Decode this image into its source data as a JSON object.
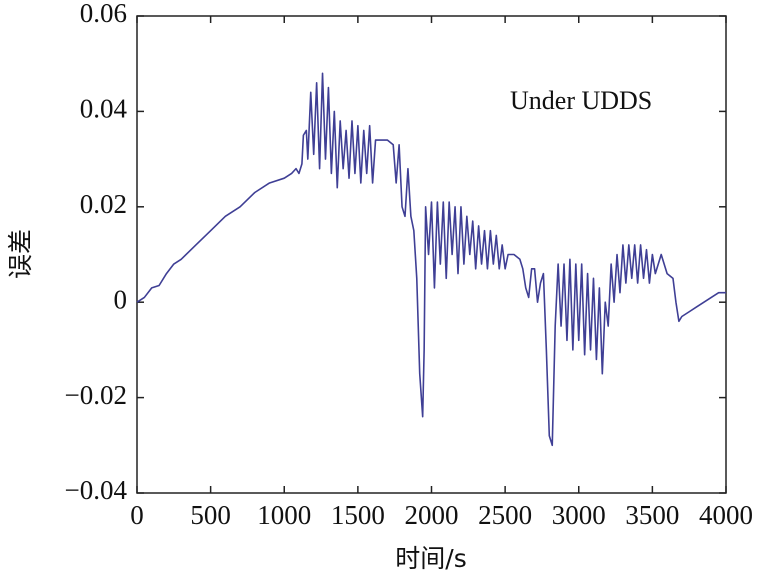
{
  "chart_data": {
    "type": "line",
    "title": null,
    "annotation": "Under UDDS",
    "x_label": "时间/s",
    "y_label": "误差",
    "xlim": [
      0,
      4000
    ],
    "ylim": [
      -0.04,
      0.06
    ],
    "xticks": [
      0,
      500,
      1000,
      1500,
      2000,
      2500,
      3000,
      3500,
      4000
    ],
    "yticks": [
      {
        "value": -0.04,
        "label": "−0.04"
      },
      {
        "value": -0.02,
        "label": "−0.02"
      },
      0,
      0.02,
      0.04,
      0.06
    ],
    "grid": false,
    "x": [
      0,
      50,
      100,
      150,
      200,
      250,
      300,
      400,
      500,
      600,
      700,
      800,
      900,
      1000,
      1050,
      1080,
      1100,
      1120,
      1130,
      1150,
      1160,
      1180,
      1200,
      1220,
      1240,
      1260,
      1280,
      1300,
      1320,
      1340,
      1360,
      1380,
      1400,
      1420,
      1440,
      1460,
      1480,
      1500,
      1520,
      1540,
      1560,
      1580,
      1600,
      1620,
      1660,
      1700,
      1740,
      1760,
      1780,
      1800,
      1820,
      1840,
      1860,
      1880,
      1900,
      1920,
      1940,
      1950,
      1960,
      1980,
      2000,
      2020,
      2040,
      2060,
      2080,
      2100,
      2120,
      2140,
      2160,
      2180,
      2200,
      2220,
      2240,
      2260,
      2280,
      2300,
      2320,
      2340,
      2360,
      2380,
      2400,
      2420,
      2440,
      2460,
      2480,
      2500,
      2520,
      2560,
      2600,
      2620,
      2640,
      2660,
      2680,
      2700,
      2720,
      2740,
      2760,
      2780,
      2800,
      2820,
      2840,
      2860,
      2880,
      2900,
      2920,
      2940,
      2960,
      2980,
      3000,
      3020,
      3040,
      3060,
      3080,
      3100,
      3120,
      3140,
      3160,
      3180,
      3200,
      3220,
      3240,
      3260,
      3280,
      3300,
      3320,
      3340,
      3360,
      3380,
      3400,
      3420,
      3440,
      3460,
      3480,
      3500,
      3520,
      3560,
      3600,
      3640,
      3660,
      3680,
      3700,
      3750,
      3800,
      3850,
      3900,
      3950,
      4000
    ],
    "series": [
      {
        "name": null,
        "color": "#3f3f95",
        "values": [
          0,
          0.001,
          0.003,
          0.0035,
          0.006,
          0.008,
          0.009,
          0.012,
          0.015,
          0.018,
          0.02,
          0.023,
          0.025,
          0.026,
          0.027,
          0.028,
          0.027,
          0.029,
          0.035,
          0.036,
          0.03,
          0.044,
          0.031,
          0.046,
          0.028,
          0.048,
          0.03,
          0.045,
          0.027,
          0.04,
          0.024,
          0.038,
          0.028,
          0.036,
          0.026,
          0.038,
          0.027,
          0.037,
          0.025,
          0.036,
          0.027,
          0.037,
          0.025,
          0.034,
          0.034,
          0.034,
          0.033,
          0.025,
          0.033,
          0.02,
          0.018,
          0.028,
          0.018,
          0.015,
          0.005,
          -0.015,
          -0.024,
          -0.01,
          0.02,
          0.01,
          0.021,
          0.003,
          0.021,
          0.008,
          0.021,
          0.005,
          0.021,
          0.01,
          0.02,
          0.006,
          0.02,
          0.008,
          0.018,
          0.01,
          0.017,
          0.007,
          0.016,
          0.008,
          0.015,
          0.007,
          0.015,
          0.008,
          0.014,
          0.007,
          0.012,
          0.007,
          0.01,
          0.01,
          0.009,
          0.007,
          0.003,
          0.001,
          0.007,
          0.007,
          0,
          0.004,
          0.006,
          -0.01,
          -0.028,
          -0.03,
          -0.005,
          0.008,
          -0.005,
          0.008,
          -0.008,
          0.009,
          -0.01,
          0.008,
          -0.008,
          0.008,
          -0.011,
          0.006,
          -0.01,
          0.005,
          -0.012,
          0.003,
          -0.015,
          0,
          -0.005,
          0.008,
          0,
          0.01,
          0.002,
          0.012,
          0.004,
          0.012,
          0.005,
          0.012,
          0.004,
          0.012,
          0.005,
          0.011,
          0.004,
          0.01,
          0.006,
          0.01,
          0.006,
          0.005,
          0,
          -0.004,
          -0.003,
          -0.002,
          -0.001,
          0,
          0.001,
          0.002,
          0.002
        ]
      }
    ]
  }
}
